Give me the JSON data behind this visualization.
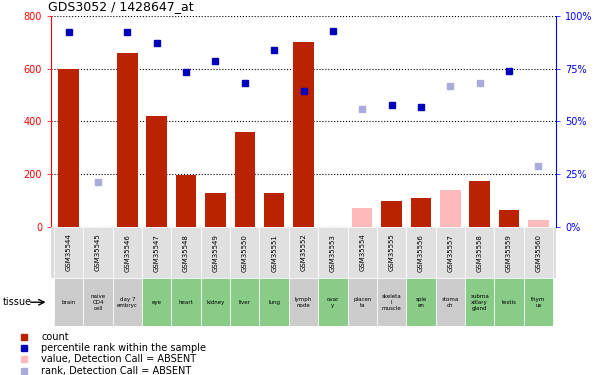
{
  "title": "GDS3052 / 1428647_at",
  "samples": [
    "GSM35544",
    "GSM35545",
    "GSM35546",
    "GSM35547",
    "GSM35548",
    "GSM35549",
    "GSM35550",
    "GSM35551",
    "GSM35552",
    "GSM35553",
    "GSM35554",
    "GSM35555",
    "GSM35556",
    "GSM35557",
    "GSM35558",
    "GSM35559",
    "GSM35560"
  ],
  "tissues": [
    "brain",
    "naive\nCD4\ncell",
    "day 7\nembryc",
    "eye",
    "heart",
    "kidney",
    "liver",
    "lung",
    "lymph\nnode",
    "ovar\ny",
    "placen\nta",
    "skeleta\nl\nmuscle",
    "sple\nen",
    "stoma\nch",
    "subma\nxillary\ngland",
    "testis",
    "thym\nus"
  ],
  "tissue_green": [
    false,
    false,
    false,
    true,
    true,
    true,
    true,
    true,
    false,
    true,
    false,
    false,
    true,
    false,
    true,
    true,
    true
  ],
  "count_values": [
    600,
    0,
    660,
    420,
    195,
    130,
    360,
    130,
    700,
    0,
    0,
    97,
    110,
    0,
    175,
    65,
    0
  ],
  "count_absent": [
    false,
    false,
    false,
    false,
    false,
    false,
    false,
    false,
    false,
    false,
    true,
    false,
    false,
    true,
    false,
    false,
    true
  ],
  "count_absent_values": [
    0,
    10,
    0,
    0,
    0,
    0,
    0,
    0,
    0,
    0,
    70,
    0,
    0,
    140,
    0,
    0,
    25
  ],
  "rank_values": [
    740,
    0,
    740,
    695,
    585,
    630,
    545,
    670,
    515,
    742,
    0,
    460,
    455,
    0,
    0,
    590,
    0
  ],
  "rank_absent": [
    false,
    true,
    false,
    false,
    false,
    false,
    false,
    false,
    false,
    false,
    true,
    false,
    false,
    true,
    true,
    false,
    true
  ],
  "rank_absent_values": [
    0,
    170,
    0,
    0,
    0,
    0,
    0,
    0,
    0,
    0,
    445,
    0,
    0,
    535,
    545,
    0,
    230
  ],
  "ylim_left": [
    0,
    800
  ],
  "ylim_right": [
    0,
    100
  ],
  "yticks_left": [
    0,
    200,
    400,
    600,
    800
  ],
  "ytick_labels_left": [
    "0",
    "200",
    "400",
    "600",
    "800"
  ],
  "yticks_right_vals": [
    0,
    25,
    50,
    75,
    100
  ],
  "ytick_labels_right": [
    "0%",
    "25%",
    "50%",
    "75%",
    "100%"
  ],
  "bar_color": "#bb2200",
  "bar_absent_color": "#ffbbbb",
  "rank_color": "#0000bb",
  "rank_absent_color": "#aaaadd",
  "bg_chart": "#ffffff",
  "bg_sample_row": "#dddddd",
  "green_tissue_color": "#88cc88",
  "grey_tissue_color": "#cccccc",
  "legend": [
    "count",
    "percentile rank within the sample",
    "value, Detection Call = ABSENT",
    "rank, Detection Call = ABSENT"
  ],
  "legend_colors": [
    "#bb2200",
    "#0000bb",
    "#ffbbbb",
    "#aaaadd"
  ]
}
